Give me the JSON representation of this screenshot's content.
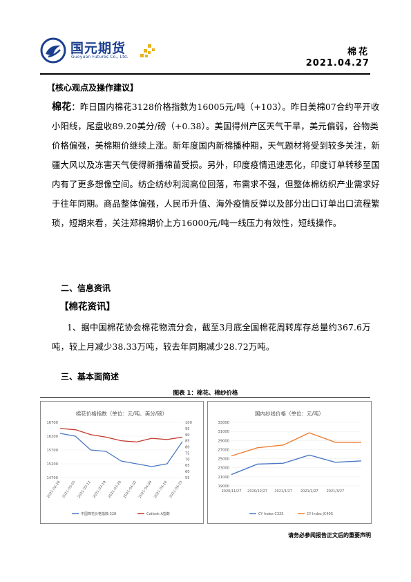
{
  "header": {
    "logo_cn": "国元期货",
    "logo_en": "Guoyuan Futures Co., Ltd.",
    "doc_title": "棉花",
    "date": "2021.04.27"
  },
  "core": {
    "heading": "【核心观点及操作建议】",
    "lead": "棉花",
    "text": "：昨日国内棉花3128价格指数为16005元/吨（+103）。昨日美棉07合约平开收小阳线，尾盘收89.20美分/磅（+0.38）。美国得州产区天气干旱，美元偏弱，谷物类价格偏强，美棉期价继续上涨。新年度国内新棉播种期，天气题材将受到较多关注，新疆大风以及冻害天气使得新播棉苗受损。另外，印度疫情迅速恶化，印度订单转移至国内有了更多想像空间。纺企纺纱利润高位回落，布需求不强，但整体棉纺织产业需求好于往年同期。商品整体偏强，人民币升值、海外疫情反弹以及部分出口订单出口流程繁琐，短期来看，关注郑棉期价上方16000元/吨一线压力有效性，短线操作。"
  },
  "info": {
    "section_heading": "二、信息资讯",
    "sub_heading": "【棉花资讯】",
    "text": "1、据中国棉花协会棉花物流分会，截至3月底全国棉花周转库存总量约367.6万吨，较上月减少38.33万吨，较去年同期减少28.72万吨。"
  },
  "fundamentals": {
    "section_heading": "三、基本面简述",
    "figure_caption": "图表 1：棉花、棉纱价格"
  },
  "footer": {
    "note": "请务必参阅报告正文后的重要声明"
  },
  "colors": {
    "brand_blue": "#1b3f8f",
    "brand_gold": "#e8b21a",
    "series_blue": "#4a78c2",
    "series_red": "#c0392b",
    "series_orange": "#ed7d31"
  },
  "chart_data": [
    {
      "type": "line",
      "title": "棉花价格指数（单位：元/吨、美分/磅）",
      "x": [
        "2021-02-26",
        "2021-03-05",
        "2021-03-12",
        "2021-03-19",
        "2021-03-26",
        "2021-04-02",
        "2021-04-09",
        "2021-04-16",
        "2021-04-23"
      ],
      "series": [
        {
          "name": "中国棉花价格指数:328",
          "axis": "left",
          "color": "#4a78c2",
          "values": [
            16300,
            16200,
            15700,
            15650,
            15300,
            15200,
            15100,
            15200,
            16000
          ]
        },
        {
          "name": "Cotlook A指数",
          "axis": "right",
          "color": "#c0392b",
          "values": [
            95,
            94,
            90,
            88,
            85,
            84,
            87,
            86,
            88
          ]
        }
      ],
      "ylim_left": [
        14700,
        16700
      ],
      "ylim_right": [
        55,
        100
      ],
      "left_ticks": [
        "16700",
        "16200",
        "15700",
        "15200",
        "14700"
      ],
      "right_ticks": [
        "100",
        "95",
        "90",
        "85",
        "80",
        "75",
        "70",
        "65",
        "60",
        "55"
      ],
      "x_ticks": [
        "2021-02-26",
        "2021-03-05",
        "2021-03-12",
        "2021-03-19",
        "2021-03-26",
        "2021-04-02",
        "2021-04-09",
        "2021-04-16",
        "2021-04-23"
      ],
      "legend": "bottom"
    },
    {
      "type": "line",
      "title": "国内纱线价格（单位：元/吨）",
      "x": [
        "2020-11-27",
        "2020-12-27",
        "2021-01-27",
        "2021-02-27",
        "2021-03-27",
        "2021-04-27"
      ],
      "series": [
        {
          "name": "CY Index C32S",
          "color": "#4a78c2",
          "values": [
            21500,
            23800,
            24000,
            25800,
            24200,
            24500
          ]
        },
        {
          "name": "CY Index JC40S",
          "color": "#ed7d31",
          "values": [
            25600,
            27400,
            28000,
            30700,
            28600,
            28600
          ]
        }
      ],
      "ylim": [
        19000,
        33000
      ],
      "y_ticks": [
        "33000",
        "31000",
        "29000",
        "27000",
        "25000",
        "23000",
        "21000",
        "19000"
      ],
      "x_ticks": [
        "2020/11/27",
        "2020/12/27",
        "2021/1/27",
        "2021/2/27",
        "2021/3/27"
      ],
      "legend": "bottom"
    }
  ]
}
